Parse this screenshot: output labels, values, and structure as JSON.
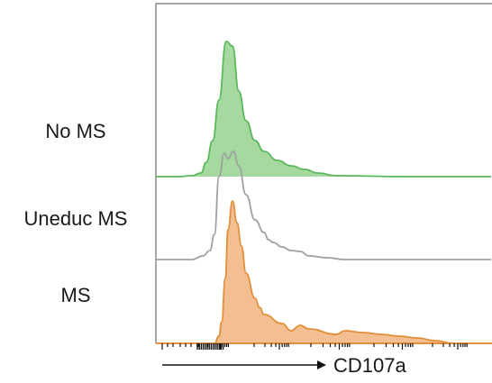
{
  "chart_data": {
    "type": "area",
    "subtype": "stacked-histogram",
    "xlabel": "CD107a",
    "x_scale": "log",
    "x_tick_labels": false,
    "grid": false,
    "legend": "none",
    "series": [
      {
        "name": "No MS",
        "color": "#5cb85c",
        "fill": "#a6d9a0",
        "x": [
          0,
          25,
          40,
          50,
          56,
          63,
          70,
          78,
          85,
          92,
          100,
          110,
          120,
          135,
          150,
          165,
          180,
          200,
          280,
          372
        ],
        "values": [
          0,
          0,
          1,
          4,
          16,
          40,
          85,
          150,
          145,
          95,
          62,
          40,
          28,
          18,
          12,
          8,
          4,
          1,
          0,
          0
        ]
      },
      {
        "name": "Uneduc MS",
        "color": "#a0a0a0",
        "fill": "none",
        "x": [
          0,
          40,
          52,
          60,
          65,
          70,
          76,
          80,
          86,
          92,
          100,
          110,
          120,
          125,
          130,
          140,
          150,
          160,
          170,
          190,
          210,
          372
        ],
        "values": [
          0,
          0,
          4,
          10,
          28,
          92,
          118,
          112,
          120,
          104,
          72,
          44,
          30,
          22,
          19,
          14,
          10,
          9,
          4,
          2,
          0,
          0
        ]
      },
      {
        "name": "MS",
        "color": "#e0903a",
        "fill": "#f2be92",
        "x": [
          0,
          65,
          70,
          73,
          77,
          80,
          85,
          90,
          95,
          100,
          110,
          115,
          120,
          140,
          150,
          160,
          170,
          200,
          210,
          230,
          250,
          270,
          290,
          310,
          330,
          372
        ],
        "values": [
          0,
          0,
          8,
          24,
          72,
          126,
          158,
          134,
          108,
          78,
          50,
          40,
          32,
          22,
          14,
          20,
          16,
          10,
          14,
          12,
          10,
          8,
          6,
          3,
          0,
          0
        ]
      }
    ]
  },
  "colors": {
    "frame": "#8c8c8c",
    "baseline": "#e0903a",
    "tick": "#111111",
    "arrow": "#111111"
  }
}
